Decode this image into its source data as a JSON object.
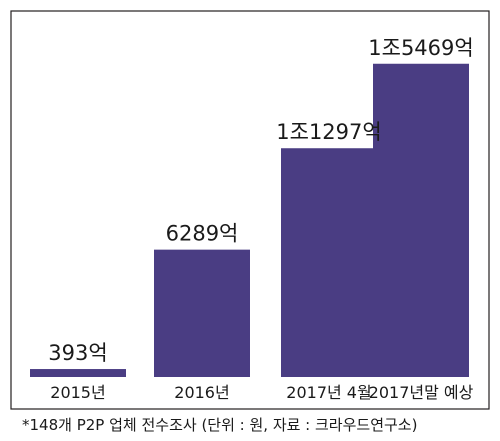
{
  "chart_data": {
    "type": "bar",
    "categories": [
      "2015년",
      "2016년",
      "2017년 4월",
      "2017년말 예상"
    ],
    "values": [
      393,
      6289,
      11297,
      15469
    ],
    "value_labels": [
      "393억",
      "6289억",
      "1조1297억",
      "1조5469억"
    ],
    "unit": "억원",
    "ylim": [
      0,
      16000
    ],
    "title": "",
    "xlabel": "",
    "ylabel": "",
    "grid": false,
    "legend": "none",
    "colors": {
      "bar": "#4a3d83",
      "frame": "#231f20"
    }
  },
  "footnote": "*148개 P2P 업체 전수조사 (단위 : 원, 자료 : 크라우드연구소)"
}
